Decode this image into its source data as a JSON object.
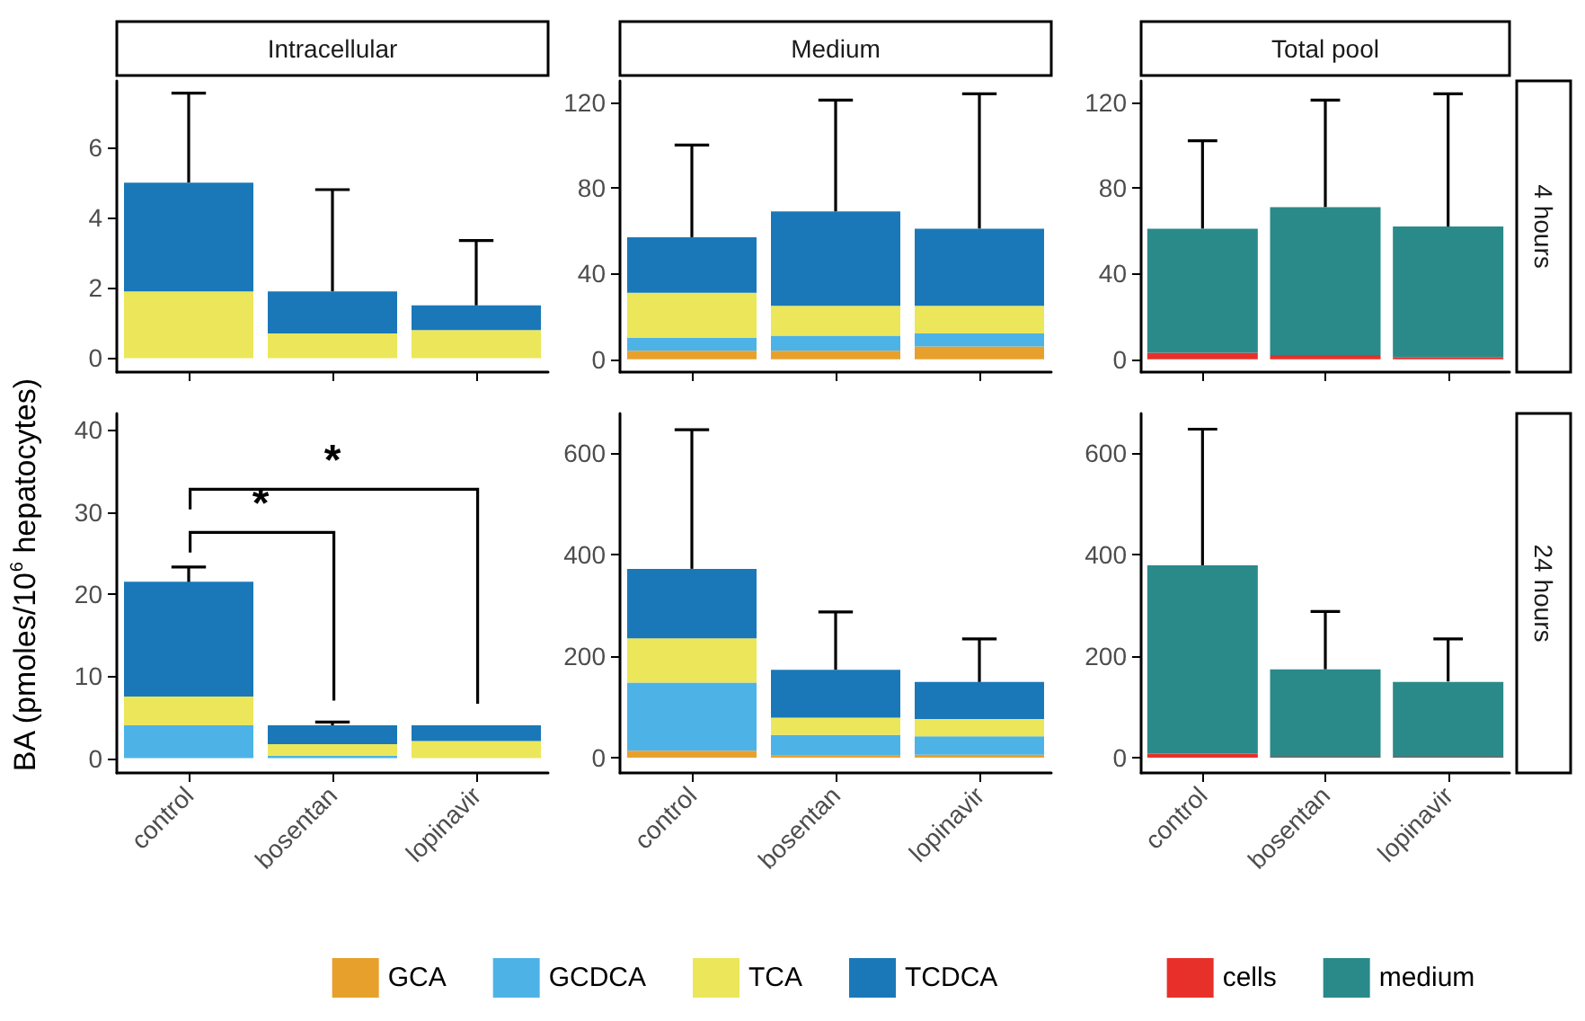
{
  "chart_data": [
    {
      "type": "bar",
      "title": "Intracellular",
      "stacked": true,
      "tick_labels": "y",
      "categories": [
        null,
        null,
        null
      ],
      "ylim": [
        -0.4,
        7.9
      ],
      "yticks": [
        0,
        2,
        4,
        6
      ],
      "series": [
        {
          "color": "#ece65a",
          "values": [
            1.9,
            0.7,
            0.8
          ]
        },
        {
          "color": "#1a78b8",
          "values": [
            3.1,
            1.2,
            0.7
          ],
          "errors": [
            [
              5.0,
              7.55
            ],
            [
              1.9,
              4.8
            ],
            [
              1.5,
              3.35
            ]
          ]
        }
      ]
    },
    {
      "type": "bar",
      "title": "Medium",
      "stacked": true,
      "tick_labels": "y",
      "categories": [
        null,
        null,
        null
      ],
      "ylim": [
        -6,
        130
      ],
      "yticks": [
        0,
        40,
        80,
        120
      ],
      "series": [
        {
          "color": "#e8a02c",
          "values": [
            4,
            4,
            6
          ]
        },
        {
          "color": "#4db3e6",
          "values": [
            6,
            7,
            6
          ]
        },
        {
          "color": "#ece65a",
          "values": [
            21,
            14,
            13
          ]
        },
        {
          "color": "#1a78b8",
          "values": [
            26,
            44,
            36
          ],
          "errors": [
            [
              57,
              100
            ],
            [
              69,
              121
            ],
            [
              61,
              124
            ]
          ]
        }
      ]
    },
    {
      "type": "bar",
      "title": "Total pool",
      "y2label": "4 hours",
      "stacked": true,
      "tick_labels": "y",
      "categories": [
        null,
        null,
        null
      ],
      "ylim": [
        -6,
        130
      ],
      "yticks": [
        0,
        40,
        80,
        120
      ],
      "series": [
        {
          "color": "#e8302a",
          "values": [
            3,
            2,
            1
          ]
        },
        {
          "color": "#2a8a8a",
          "values": [
            58,
            69,
            61
          ],
          "errors": [
            [
              61,
              102
            ],
            [
              71,
              121
            ],
            [
              62,
              124
            ]
          ]
        }
      ]
    },
    {
      "type": "bar",
      "ylabel": "BA (pmoles/10$^{6}$ hepatocytes)",
      "stacked": true,
      "categories": [
        "control",
        "bosentan",
        "lopinavir"
      ],
      "ylim": [
        -1.8,
        42
      ],
      "yticks": [
        0,
        10,
        20,
        30,
        40
      ],
      "annotations": [
        "*",
        "*"
      ],
      "series": [
        {
          "color": "#4db3e6",
          "values": [
            4,
            0.3,
            null
          ]
        },
        {
          "color": "#ece65a",
          "values": [
            3.5,
            1.4,
            2.1
          ]
        },
        {
          "color": "#1a78b8",
          "values": [
            14,
            2.3,
            1.9
          ],
          "errors": [
            [
              21.4,
              23.3
            ],
            [
              4.0,
              4.4
            ],
            null
          ]
        }
      ]
    },
    {
      "type": "bar",
      "stacked": true,
      "legend": "bottom",
      "categories": [
        "control",
        "bosentan",
        "lopinavir"
      ],
      "ylim": [
        -30,
        678
      ],
      "yticks": [
        0,
        200,
        400,
        600
      ],
      "series": [
        {
          "name": "GCA",
          "color": "#e8a02c",
          "values": [
            14,
            4,
            6
          ]
        },
        {
          "name": "GCDCA",
          "color": "#4db3e6",
          "values": [
            134,
            41,
            36
          ]
        },
        {
          "name": "TCA",
          "color": "#ece65a",
          "values": [
            87,
            34,
            34
          ]
        },
        {
          "name": "TCDCA",
          "color": "#1a78b8",
          "values": [
            137,
            94,
            73
          ],
          "errors": [
            [
              372,
              646
            ],
            [
              173,
              287
            ],
            [
              149,
              234
            ]
          ]
        }
      ]
    },
    {
      "type": "bar",
      "y2label": "24 hours",
      "stacked": true,
      "legend": "bottom",
      "categories": [
        "control",
        "bosentan",
        "lopinavir"
      ],
      "ylim": [
        -30,
        678
      ],
      "yticks": [
        0,
        200,
        400,
        600
      ],
      "series": [
        {
          "name": "cells",
          "color": "#e8302a",
          "values": [
            8,
            2,
            2
          ]
        },
        {
          "name": "medium",
          "color": "#2a8a8a",
          "values": [
            371,
            172,
            147
          ],
          "errors": [
            [
              379,
              647
            ],
            [
              174,
              288
            ],
            [
              150,
              234
            ]
          ]
        }
      ]
    }
  ]
}
